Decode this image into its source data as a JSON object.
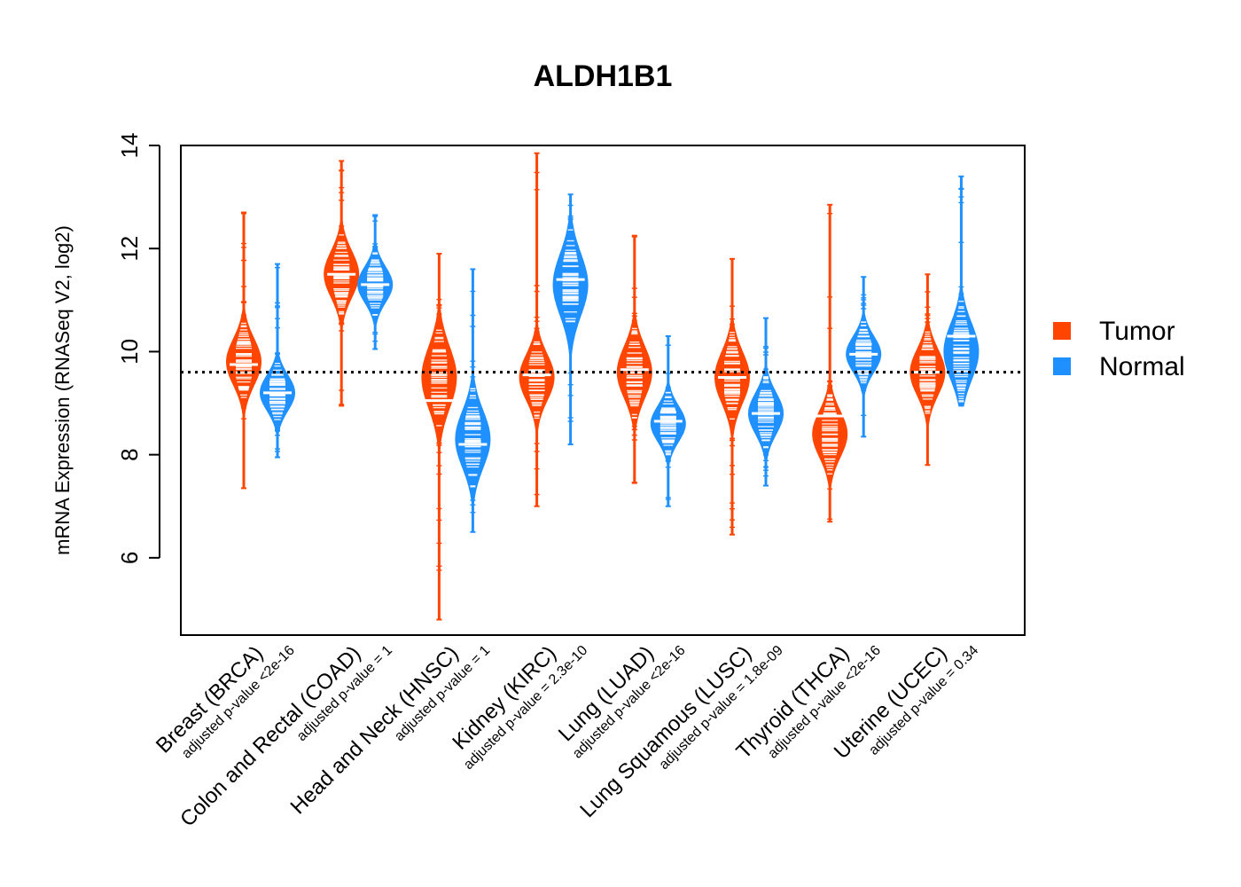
{
  "chart_data": {
    "type": "violin",
    "title": "ALDH1B1",
    "ylabel": "mRNA Expression (RNASeq V2, log2)",
    "xlabel": "",
    "ylim": [
      4.5,
      14.0
    ],
    "yticks": [
      "6",
      "8",
      "10",
      "12",
      "14"
    ],
    "reference_line": 9.6,
    "grid": false,
    "legend_position": "right",
    "series": [
      {
        "name": "Tumor",
        "color": "#ff4500"
      },
      {
        "name": "Normal",
        "color": "#1e90ff"
      }
    ],
    "groups": [
      {
        "label": "Breast (BRCA)",
        "pvalue": "adjusted p-value <2e-16",
        "tumor": {
          "min": 7.35,
          "max": 12.7,
          "median": 9.75,
          "mode": 9.8,
          "spread": 0.45
        },
        "normal": {
          "min": 7.95,
          "max": 11.7,
          "median": 9.2,
          "mode": 9.2,
          "spread": 0.35
        }
      },
      {
        "label": "Colon and Rectal (COAD)",
        "pvalue": "adjusted p-value = 1",
        "tumor": {
          "min": 8.95,
          "max": 13.7,
          "median": 11.5,
          "mode": 11.5,
          "spread": 0.45
        },
        "normal": {
          "min": 10.05,
          "max": 12.65,
          "median": 11.3,
          "mode": 11.3,
          "spread": 0.35
        }
      },
      {
        "label": "Head and Neck (HNSC)",
        "pvalue": "adjusted p-value = 1",
        "tumor": {
          "min": 4.8,
          "max": 11.9,
          "median": 9.05,
          "mode": 9.5,
          "spread": 0.6
        },
        "normal": {
          "min": 6.5,
          "max": 11.6,
          "median": 8.2,
          "mode": 8.3,
          "spread": 0.55
        }
      },
      {
        "label": "Kidney (KIRC)",
        "pvalue": "adjusted p-value = 2.3e-10",
        "tumor": {
          "min": 7.0,
          "max": 13.85,
          "median": 9.55,
          "mode": 9.5,
          "spread": 0.45
        },
        "normal": {
          "min": 8.2,
          "max": 13.05,
          "median": 11.4,
          "mode": 11.3,
          "spread": 0.6
        }
      },
      {
        "label": "Lung (LUAD)",
        "pvalue": "adjusted p-value <2e-16",
        "tumor": {
          "min": 7.45,
          "max": 12.25,
          "median": 9.65,
          "mode": 9.6,
          "spread": 0.5
        },
        "normal": {
          "min": 7.0,
          "max": 10.3,
          "median": 8.65,
          "mode": 8.6,
          "spread": 0.35
        }
      },
      {
        "label": "Lung Squamous (LUSC)",
        "pvalue": "adjusted p-value = 1.8e-09",
        "tumor": {
          "min": 6.45,
          "max": 11.8,
          "median": 9.5,
          "mode": 9.5,
          "spread": 0.5
        },
        "normal": {
          "min": 7.4,
          "max": 10.65,
          "median": 8.8,
          "mode": 8.8,
          "spread": 0.4
        }
      },
      {
        "label": "Thyroid (THCA)",
        "pvalue": "adjusted p-value <2e-16",
        "tumor": {
          "min": 6.7,
          "max": 12.85,
          "median": 8.75,
          "mode": 8.4,
          "spread": 0.45
        },
        "normal": {
          "min": 8.35,
          "max": 11.45,
          "median": 9.95,
          "mode": 9.95,
          "spread": 0.35
        }
      },
      {
        "label": "Uterine (UCEC)",
        "pvalue": "adjusted p-value = 0.34",
        "tumor": {
          "min": 7.8,
          "max": 11.5,
          "median": 9.6,
          "mode": 9.6,
          "spread": 0.45
        },
        "normal": {
          "min": 8.95,
          "max": 13.4,
          "median": 10.3,
          "mode": 10.0,
          "spread": 0.55
        }
      }
    ]
  }
}
